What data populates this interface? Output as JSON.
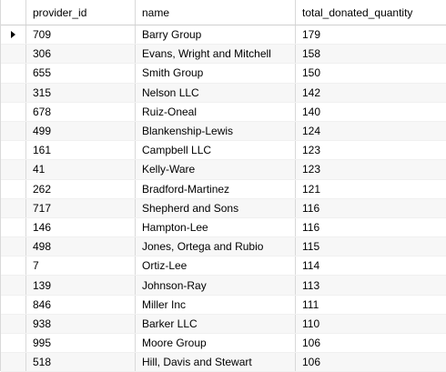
{
  "columns": [
    "provider_id",
    "name",
    "total_donated_quantity"
  ],
  "rows": [
    {
      "provider_id": "709",
      "name": "Barry Group",
      "total_donated_quantity": "179"
    },
    {
      "provider_id": "306",
      "name": "Evans, Wright and Mitchell",
      "total_donated_quantity": "158"
    },
    {
      "provider_id": "655",
      "name": "Smith Group",
      "total_donated_quantity": "150"
    },
    {
      "provider_id": "315",
      "name": "Nelson LLC",
      "total_donated_quantity": "142"
    },
    {
      "provider_id": "678",
      "name": "Ruiz-Oneal",
      "total_donated_quantity": "140"
    },
    {
      "provider_id": "499",
      "name": "Blankenship-Lewis",
      "total_donated_quantity": "124"
    },
    {
      "provider_id": "161",
      "name": "Campbell LLC",
      "total_donated_quantity": "123"
    },
    {
      "provider_id": "41",
      "name": "Kelly-Ware",
      "total_donated_quantity": "123"
    },
    {
      "provider_id": "262",
      "name": "Bradford-Martinez",
      "total_donated_quantity": "121"
    },
    {
      "provider_id": "717",
      "name": "Shepherd and Sons",
      "total_donated_quantity": "116"
    },
    {
      "provider_id": "146",
      "name": "Hampton-Lee",
      "total_donated_quantity": "116"
    },
    {
      "provider_id": "498",
      "name": "Jones, Ortega and Rubio",
      "total_donated_quantity": "115"
    },
    {
      "provider_id": "7",
      "name": "Ortiz-Lee",
      "total_donated_quantity": "114"
    },
    {
      "provider_id": "139",
      "name": "Johnson-Ray",
      "total_donated_quantity": "113"
    },
    {
      "provider_id": "846",
      "name": "Miller Inc",
      "total_donated_quantity": "111"
    },
    {
      "provider_id": "938",
      "name": "Barker LLC",
      "total_donated_quantity": "110"
    },
    {
      "provider_id": "995",
      "name": "Moore Group",
      "total_donated_quantity": "106"
    },
    {
      "provider_id": "518",
      "name": "Hill, Davis and Stewart",
      "total_donated_quantity": "106"
    }
  ],
  "current_row_icon": "row-pointer-arrow-icon"
}
